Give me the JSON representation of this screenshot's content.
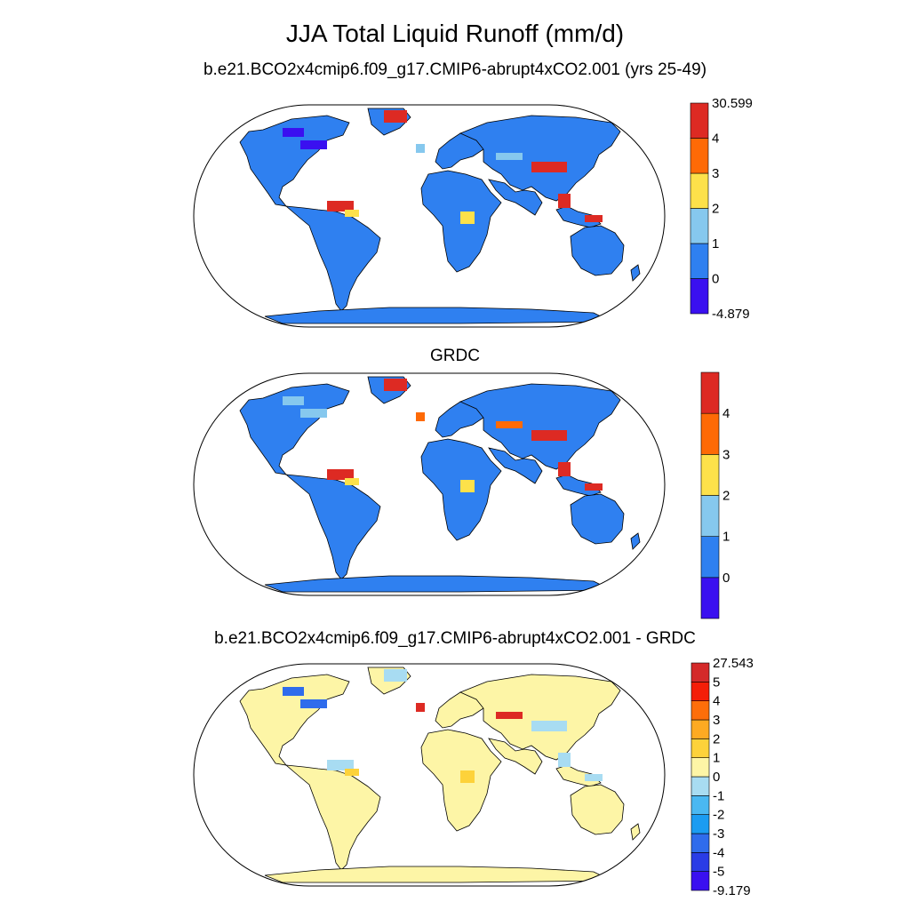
{
  "title": "JJA Total Liquid Runoff (mm/d)",
  "panels": [
    {
      "title": "b.e21.BCO2x4cmip6.f09_g17.CMIP6-abrupt4xCO2.001 (yrs 25-49)",
      "colorbar": {
        "colors": [
          "#3a10f0",
          "#2f80f0",
          "#86c8ee",
          "#fde14a",
          "#fe6a06",
          "#dd2a23"
        ],
        "labels": [
          "-4.879",
          "0",
          "1",
          "2",
          "3",
          "4",
          "30.599"
        ]
      }
    },
    {
      "title": "GRDC",
      "colorbar": {
        "colors": [
          "#3a10f0",
          "#2f80f0",
          "#86c8ee",
          "#fde14a",
          "#fe6a06",
          "#dd2a23"
        ],
        "labels": [
          "",
          "0",
          "1",
          "2",
          "3",
          "4",
          ""
        ]
      }
    },
    {
      "title": "b.e21.BCO2x4cmip6.f09_g17.CMIP6-abrupt4xCO2.001 - GRDC",
      "colorbar": {
        "colors": [
          "#3a10f0",
          "#2a3ce6",
          "#2f6cec",
          "#1b9cf2",
          "#4ab8f2",
          "#a8dcf2",
          "#fdf5a6",
          "#fdd23a",
          "#fdaa22",
          "#fd6e0a",
          "#f41e08",
          "#d42a2a"
        ],
        "labels": [
          "-9.179",
          "-5",
          "-4",
          "-3",
          "-2",
          "-1",
          "0",
          "1",
          "2",
          "3",
          "4",
          "5",
          "27.543"
        ]
      }
    }
  ]
}
